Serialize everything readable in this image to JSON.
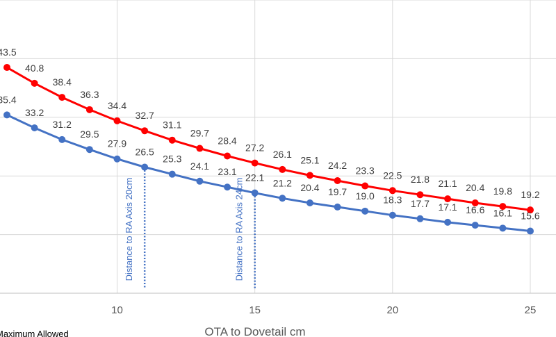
{
  "chart_data": {
    "type": "line",
    "xlabel": "OTA to Dovetail cm",
    "x": [
      6,
      7,
      8,
      9,
      10,
      11,
      12,
      13,
      14,
      15,
      16,
      17,
      18,
      19,
      20,
      21,
      22,
      23,
      24,
      25
    ],
    "x_ticks": [
      "10",
      "15",
      "20",
      "25"
    ],
    "xlim": [
      5.8,
      26
    ],
    "ylim": [
      5,
      55
    ],
    "grid": true,
    "series": [
      {
        "color": "#ff0000",
        "values": [
          43.5,
          40.8,
          38.4,
          36.3,
          34.4,
          32.7,
          31.1,
          29.7,
          28.4,
          27.2,
          26.1,
          25.1,
          24.2,
          23.3,
          22.5,
          21.8,
          21.1,
          20.4,
          19.8,
          19.2
        ],
        "labels": [
          "43.5",
          "40.8",
          "38.4",
          "36.3",
          "34.4",
          "32.7",
          "31.1",
          "29.7",
          "28.4",
          "27.2",
          "26.1",
          "25.1",
          "24.2",
          "23.3",
          "22.5",
          "21.8",
          "21.1",
          "20.4",
          "19.8",
          "19.2"
        ]
      },
      {
        "color": "#4472c4",
        "values": [
          35.4,
          33.2,
          31.2,
          29.5,
          27.9,
          26.5,
          25.3,
          24.1,
          23.1,
          22.1,
          21.2,
          20.4,
          19.7,
          19.0,
          18.3,
          17.7,
          17.1,
          16.6,
          16.1,
          15.6
        ],
        "labels": [
          "35.4",
          "33.2",
          "31.2",
          "29.5",
          "27.9",
          "26.5",
          "25.3",
          "24.1",
          "23.1",
          "22.1",
          "21.2",
          "20.4",
          "19.7",
          "19.0",
          "18.3",
          "17.7",
          "17.1",
          "16.6",
          "16.1",
          "15.6"
        ]
      }
    ],
    "annotations": [
      {
        "text": "Distance to RA  Axis 20cm",
        "x": 11,
        "series": 1
      },
      {
        "text": "Distance to RA  Axis 24cm",
        "x": 15,
        "series": 1
      }
    ],
    "legend": {
      "text": "Maximum Allowed",
      "placement": "bottom-left"
    }
  }
}
